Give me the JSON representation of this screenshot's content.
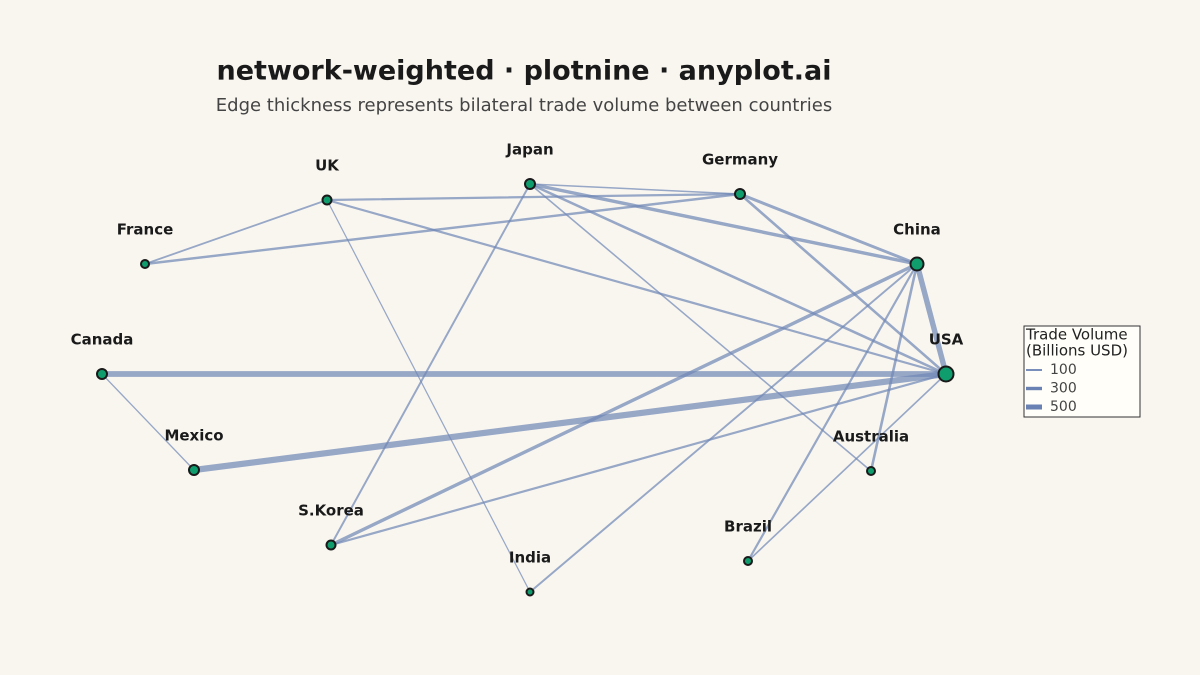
{
  "title": "network-weighted · plotnine · anyplot.ai",
  "subtitle": "Edge thickness represents bilateral trade volume between countries",
  "nodes": [
    {
      "label": "France"
    },
    {
      "label": "UK"
    },
    {
      "label": "Japan"
    },
    {
      "label": "Germany"
    },
    {
      "label": "China"
    },
    {
      "label": "USA"
    },
    {
      "label": "Australia"
    },
    {
      "label": "Brazil"
    },
    {
      "label": "India"
    },
    {
      "label": "S.Korea"
    },
    {
      "label": "Mexico"
    },
    {
      "label": "Canada"
    }
  ],
  "edges": [
    {
      "source": "Canada",
      "target": "USA",
      "weight": 600
    },
    {
      "source": "Canada",
      "target": "Mexico",
      "weight": 40
    },
    {
      "source": "Mexico",
      "target": "USA",
      "weight": 650
    },
    {
      "source": "UK",
      "target": "France",
      "weight": 100
    },
    {
      "source": "UK",
      "target": "Germany",
      "weight": 150
    },
    {
      "source": "UK",
      "target": "USA",
      "weight": 150
    },
    {
      "source": "UK",
      "target": "India",
      "weight": 30
    },
    {
      "source": "France",
      "target": "Germany",
      "weight": 180
    },
    {
      "source": "Japan",
      "target": "Germany",
      "weight": 60
    },
    {
      "source": "Japan",
      "target": "China",
      "weight": 300
    },
    {
      "source": "Japan",
      "target": "USA",
      "weight": 200
    },
    {
      "source": "Japan",
      "target": "Australia",
      "weight": 70
    },
    {
      "source": "Japan",
      "target": "S.Korea",
      "weight": 120
    },
    {
      "source": "Germany",
      "target": "China",
      "weight": 250
    },
    {
      "source": "Germany",
      "target": "USA",
      "weight": 200
    },
    {
      "source": "China",
      "target": "USA",
      "weight": 550
    },
    {
      "source": "China",
      "target": "S.Korea",
      "weight": 300
    },
    {
      "source": "China",
      "target": "India",
      "weight": 120
    },
    {
      "source": "China",
      "target": "Brazil",
      "weight": 150
    },
    {
      "source": "China",
      "target": "Australia",
      "weight": 200
    },
    {
      "source": "USA",
      "target": "S.Korea",
      "weight": 150
    },
    {
      "source": "USA",
      "target": "Brazil",
      "weight": 80
    }
  ],
  "legend": {
    "title": [
      "Trade Volume",
      "(Billions USD)"
    ],
    "items": [
      100,
      300,
      500
    ]
  }
}
